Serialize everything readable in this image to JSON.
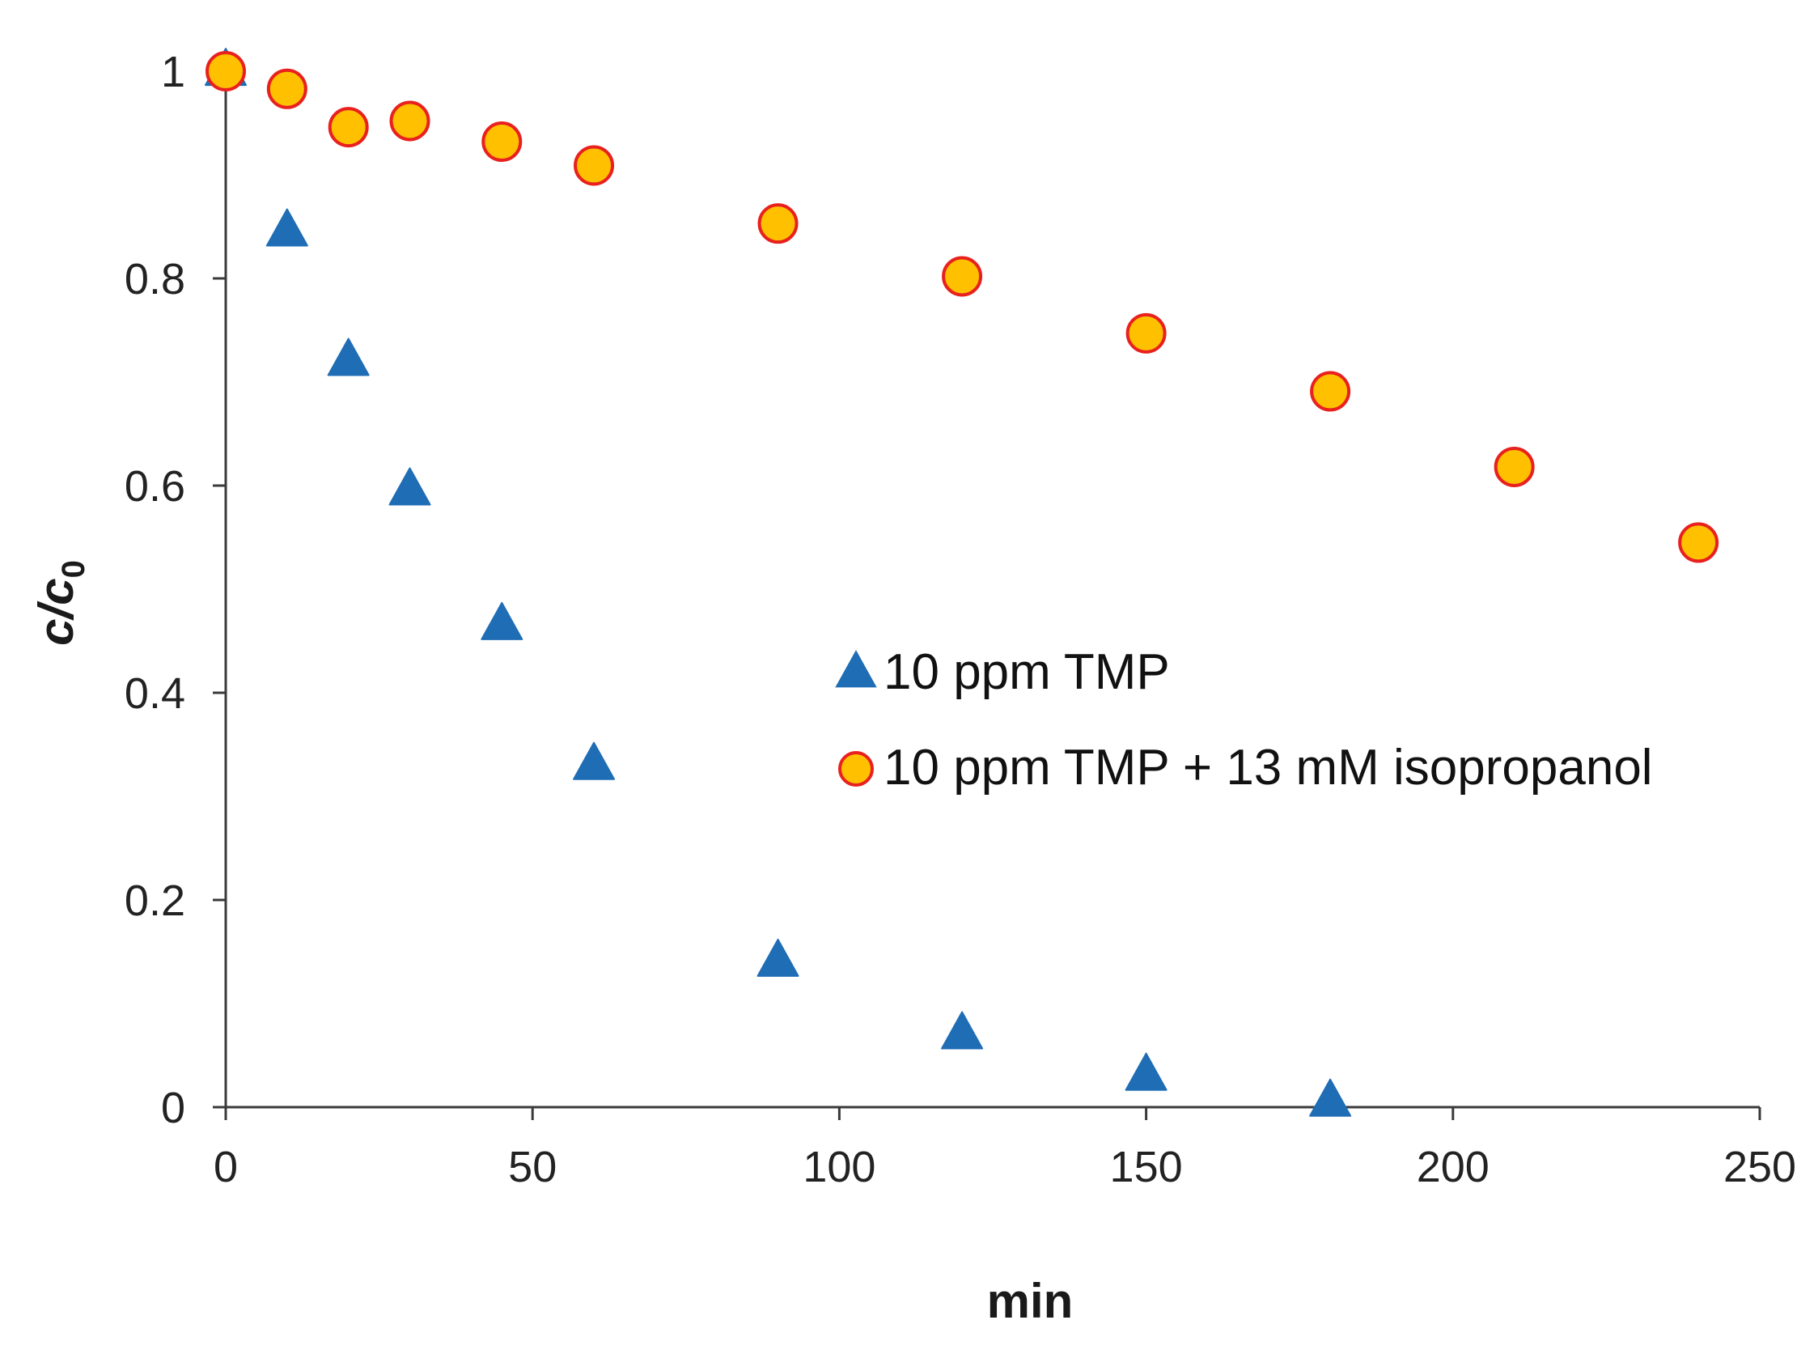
{
  "chart_data": {
    "type": "scatter",
    "title": "",
    "xlabel": "min",
    "ylabel": {
      "main": "c/c",
      "subscript": "0"
    },
    "xlim": [
      0,
      250
    ],
    "ylim": [
      0,
      1
    ],
    "x_ticks": [
      0,
      50,
      100,
      150,
      200,
      250
    ],
    "x_tick_labels": [
      "0",
      "50",
      "100",
      "150",
      "200",
      "250"
    ],
    "y_ticks": [
      0,
      0.2,
      0.4,
      0.6,
      0.8,
      1
    ],
    "y_tick_labels": [
      "0",
      "0.2",
      "0.4",
      "0.6",
      "0.8",
      "1"
    ],
    "grid": false,
    "legend_position": "center-right",
    "series": [
      {
        "name": "10 ppm TMP",
        "marker": "triangle",
        "fill": "#1f6db5",
        "stroke": "#1f6db5",
        "x": [
          0,
          10,
          20,
          30,
          45,
          60,
          90,
          120,
          150,
          180
        ],
        "values": [
          1.0,
          0.845,
          0.72,
          0.595,
          0.465,
          0.33,
          0.14,
          0.07,
          0.03,
          0.005
        ]
      },
      {
        "name": "10 ppm TMP + 13 mM isopropanol",
        "marker": "circle",
        "fill": "#ffc000",
        "stroke": "#e8201e",
        "x": [
          0,
          10,
          20,
          30,
          45,
          60,
          90,
          120,
          150,
          180,
          210,
          240
        ],
        "values": [
          1.0,
          0.983,
          0.946,
          0.952,
          0.932,
          0.909,
          0.853,
          0.802,
          0.747,
          0.691,
          0.618,
          0.545
        ]
      }
    ]
  }
}
